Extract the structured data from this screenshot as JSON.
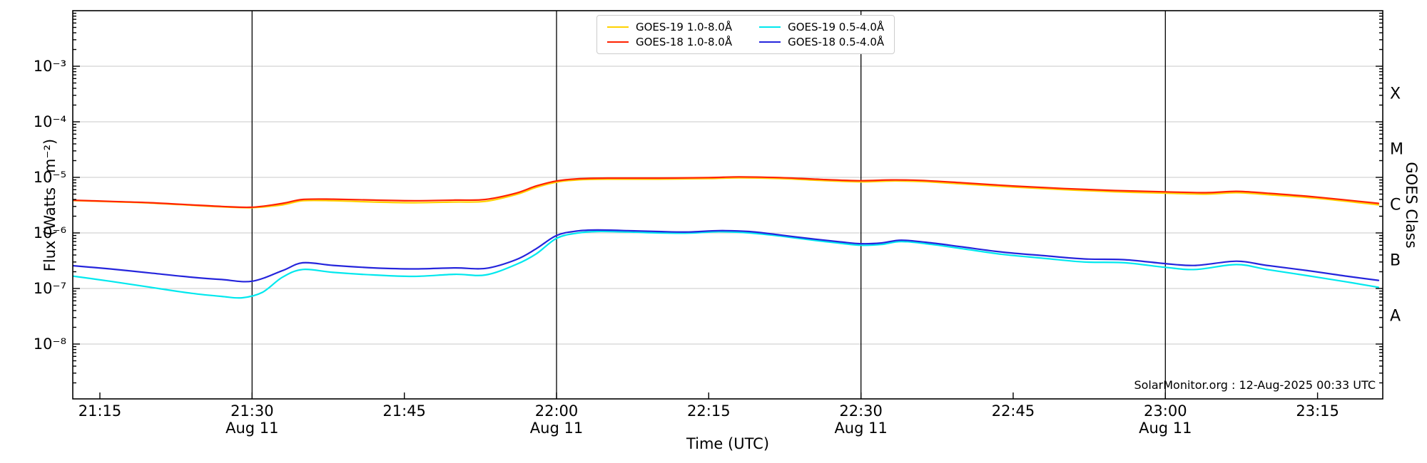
{
  "annotation": {
    "text": "SolarMonitor.org : 12-Aug-2025 00:33 UTC"
  },
  "chart_data": {
    "type": "line",
    "title": "",
    "xlabel": "Time (UTC)",
    "ylabel": "Flux (Watts · m⁻²)",
    "y2label": "GOES Class",
    "grid": "horizontal decade gridlines, light gray",
    "legend_position": "top-center, 2 columns",
    "x_axis": {
      "units": "minutes after 21:00 UTC on 11-Aug-2025",
      "start_min": 12.3,
      "end_min": 141.4,
      "ticks": [
        {
          "min": 15,
          "label": "21:15"
        },
        {
          "min": 30,
          "label": "21:30"
        },
        {
          "min": 45,
          "label": "21:45"
        },
        {
          "min": 60,
          "label": "22:00"
        },
        {
          "min": 75,
          "label": "22:15"
        },
        {
          "min": 90,
          "label": "22:30"
        },
        {
          "min": 105,
          "label": "22:45"
        },
        {
          "min": 120,
          "label": "23:00"
        },
        {
          "min": 135,
          "label": "23:15"
        }
      ],
      "date_lines": [
        {
          "min": 30,
          "label": "Aug 11"
        },
        {
          "min": 60,
          "label": "Aug 11"
        },
        {
          "min": 90,
          "label": "Aug 11"
        },
        {
          "min": 120,
          "label": "Aug 11"
        }
      ]
    },
    "y_axis": {
      "scale": "log",
      "top_exp": -2,
      "bottom_exp": -9,
      "ticks": [
        {
          "exp": -3,
          "label": "10⁻³"
        },
        {
          "exp": -4,
          "label": "10⁻⁴"
        },
        {
          "exp": -5,
          "label": "10⁻⁵"
        },
        {
          "exp": -6,
          "label": "10⁻⁶"
        },
        {
          "exp": -7,
          "label": "10⁻⁷"
        },
        {
          "exp": -8,
          "label": "10⁻⁸"
        }
      ]
    },
    "goes_classes": [
      {
        "label": "X",
        "exp": -3.5
      },
      {
        "label": "M",
        "exp": -4.5
      },
      {
        "label": "C",
        "exp": -5.5
      },
      {
        "label": "B",
        "exp": -6.5
      },
      {
        "label": "A",
        "exp": -7.5
      }
    ],
    "colors": {
      "grid": "#c9c9c9",
      "spine": "#000000",
      "date_line": "#000000"
    },
    "series": [
      {
        "name": "GOES-19 1.0-8.0Å",
        "color": "#FFD200",
        "points": [
          [
            12,
            3.85e-06
          ],
          [
            16,
            3.65e-06
          ],
          [
            20,
            3.45e-06
          ],
          [
            24,
            3.15e-06
          ],
          [
            27,
            2.95e-06
          ],
          [
            30,
            2.85e-06
          ],
          [
            33,
            3.2e-06
          ],
          [
            35,
            3.8e-06
          ],
          [
            38,
            3.8e-06
          ],
          [
            42,
            3.6e-06
          ],
          [
            46,
            3.5e-06
          ],
          [
            50,
            3.6e-06
          ],
          [
            53,
            3.7e-06
          ],
          [
            56,
            4.9e-06
          ],
          [
            58,
            6.6e-06
          ],
          [
            60,
            8.2e-06
          ],
          [
            62,
            9e-06
          ],
          [
            65,
            9.3e-06
          ],
          [
            70,
            9.3e-06
          ],
          [
            75,
            9.5e-06
          ],
          [
            78,
            9.8e-06
          ],
          [
            82,
            9.5e-06
          ],
          [
            86,
            8.8e-06
          ],
          [
            90,
            8.3e-06
          ],
          [
            93,
            8.6e-06
          ],
          [
            96,
            8.4e-06
          ],
          [
            100,
            7.6e-06
          ],
          [
            105,
            6.7e-06
          ],
          [
            110,
            6e-06
          ],
          [
            115,
            5.5e-06
          ],
          [
            120,
            5.2e-06
          ],
          [
            124,
            5e-06
          ],
          [
            127,
            5.3e-06
          ],
          [
            130,
            4.9e-06
          ],
          [
            135,
            4.2e-06
          ],
          [
            141,
            3.2e-06
          ]
        ]
      },
      {
        "name": "GOES-18 1.0-8.0Å",
        "color": "#FF2200",
        "points": [
          [
            12,
            3.9e-06
          ],
          [
            16,
            3.7e-06
          ],
          [
            20,
            3.5e-06
          ],
          [
            24,
            3.2e-06
          ],
          [
            27,
            3e-06
          ],
          [
            30,
            2.9e-06
          ],
          [
            33,
            3.4e-06
          ],
          [
            35,
            4e-06
          ],
          [
            38,
            4.05e-06
          ],
          [
            42,
            3.9e-06
          ],
          [
            46,
            3.8e-06
          ],
          [
            50,
            3.9e-06
          ],
          [
            53,
            4e-06
          ],
          [
            56,
            5.2e-06
          ],
          [
            58,
            7e-06
          ],
          [
            60,
            8.6e-06
          ],
          [
            62,
            9.4e-06
          ],
          [
            65,
            9.7e-06
          ],
          [
            70,
            9.7e-06
          ],
          [
            75,
            9.9e-06
          ],
          [
            78,
            1.02e-05
          ],
          [
            82,
            9.9e-06
          ],
          [
            86,
            9.2e-06
          ],
          [
            90,
            8.7e-06
          ],
          [
            93,
            9e-06
          ],
          [
            96,
            8.8e-06
          ],
          [
            100,
            8e-06
          ],
          [
            105,
            7e-06
          ],
          [
            110,
            6.3e-06
          ],
          [
            115,
            5.8e-06
          ],
          [
            120,
            5.5e-06
          ],
          [
            124,
            5.3e-06
          ],
          [
            127,
            5.6e-06
          ],
          [
            130,
            5.2e-06
          ],
          [
            135,
            4.4e-06
          ],
          [
            141,
            3.4e-06
          ]
        ]
      },
      {
        "name": "GOES-19 0.5-4.0Å",
        "color": "#00E8EE",
        "points": [
          [
            12,
            1.7e-07
          ],
          [
            16,
            1.35e-07
          ],
          [
            20,
            1.05e-07
          ],
          [
            24,
            8.2e-08
          ],
          [
            27,
            7.2e-08
          ],
          [
            29,
            6.8e-08
          ],
          [
            31,
            8.5e-08
          ],
          [
            33,
            1.6e-07
          ],
          [
            35,
            2.2e-07
          ],
          [
            38,
            1.95e-07
          ],
          [
            42,
            1.75e-07
          ],
          [
            46,
            1.65e-07
          ],
          [
            50,
            1.8e-07
          ],
          [
            53,
            1.75e-07
          ],
          [
            56,
            2.7e-07
          ],
          [
            58,
            4.2e-07
          ],
          [
            60,
            8e-07
          ],
          [
            62,
            9.9e-07
          ],
          [
            64,
            1.06e-06
          ],
          [
            67,
            1.04e-06
          ],
          [
            70,
            1e-06
          ],
          [
            73,
            9.9e-07
          ],
          [
            76,
            1.05e-06
          ],
          [
            79,
            1e-06
          ],
          [
            82,
            8.8e-07
          ],
          [
            85,
            7.5e-07
          ],
          [
            88,
            6.5e-07
          ],
          [
            90,
            6e-07
          ],
          [
            92,
            6.2e-07
          ],
          [
            94,
            7e-07
          ],
          [
            97,
            6.2e-07
          ],
          [
            100,
            5.2e-07
          ],
          [
            104,
            4.1e-07
          ],
          [
            108,
            3.5e-07
          ],
          [
            112,
            3e-07
          ],
          [
            116,
            2.9e-07
          ],
          [
            120,
            2.4e-07
          ],
          [
            123,
            2.2e-07
          ],
          [
            127,
            2.7e-07
          ],
          [
            130,
            2.2e-07
          ],
          [
            134,
            1.7e-07
          ],
          [
            138,
            1.3e-07
          ],
          [
            141,
            1.05e-07
          ]
        ]
      },
      {
        "name": "GOES-18 0.5-4.0Å",
        "color": "#2525DC",
        "points": [
          [
            12,
            2.6e-07
          ],
          [
            16,
            2.25e-07
          ],
          [
            20,
            1.9e-07
          ],
          [
            24,
            1.6e-07
          ],
          [
            27,
            1.45e-07
          ],
          [
            30,
            1.35e-07
          ],
          [
            33,
            2.1e-07
          ],
          [
            35,
            2.9e-07
          ],
          [
            38,
            2.6e-07
          ],
          [
            42,
            2.35e-07
          ],
          [
            46,
            2.25e-07
          ],
          [
            50,
            2.35e-07
          ],
          [
            53,
            2.3e-07
          ],
          [
            56,
            3.3e-07
          ],
          [
            58,
            5.2e-07
          ],
          [
            60,
            9e-07
          ],
          [
            62,
            1.08e-06
          ],
          [
            64,
            1.13e-06
          ],
          [
            67,
            1.1e-06
          ],
          [
            70,
            1.06e-06
          ],
          [
            73,
            1.04e-06
          ],
          [
            76,
            1.1e-06
          ],
          [
            79,
            1.06e-06
          ],
          [
            82,
            9.2e-07
          ],
          [
            85,
            7.9e-07
          ],
          [
            88,
            6.9e-07
          ],
          [
            90,
            6.4e-07
          ],
          [
            92,
            6.6e-07
          ],
          [
            94,
            7.4e-07
          ],
          [
            97,
            6.6e-07
          ],
          [
            100,
            5.6e-07
          ],
          [
            104,
            4.5e-07
          ],
          [
            108,
            3.9e-07
          ],
          [
            112,
            3.4e-07
          ],
          [
            116,
            3.3e-07
          ],
          [
            120,
            2.8e-07
          ],
          [
            123,
            2.6e-07
          ],
          [
            127,
            3.1e-07
          ],
          [
            130,
            2.6e-07
          ],
          [
            134,
            2.1e-07
          ],
          [
            138,
            1.65e-07
          ],
          [
            141,
            1.4e-07
          ]
        ]
      }
    ]
  }
}
